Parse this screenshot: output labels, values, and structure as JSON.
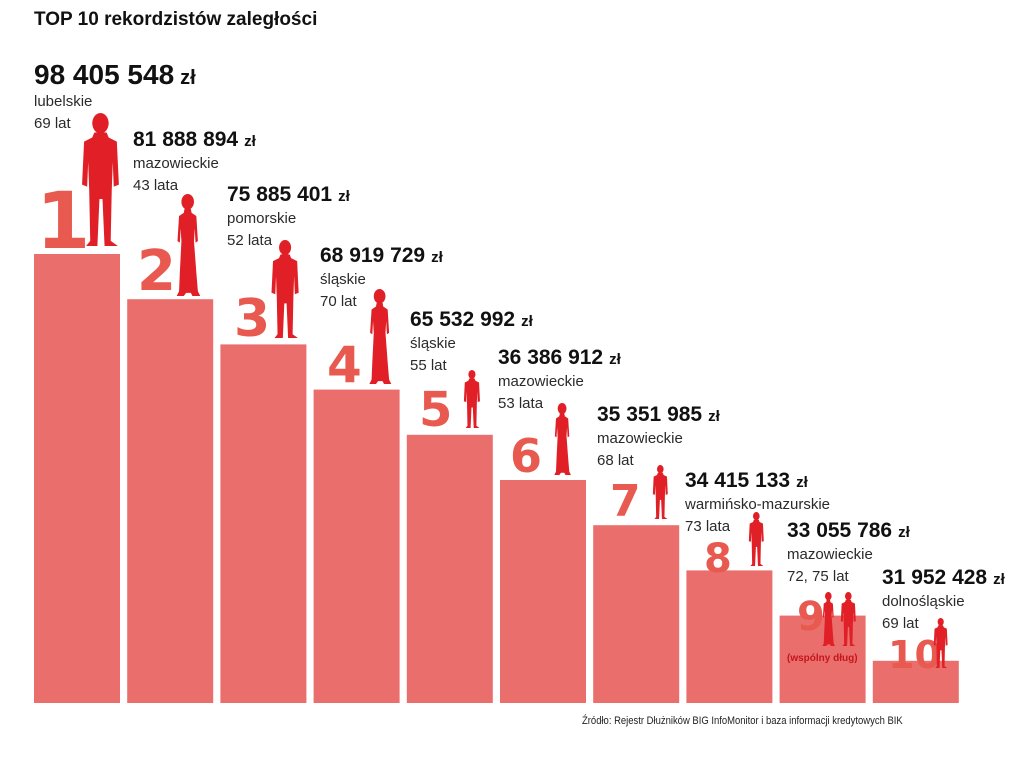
{
  "chart_data": {
    "type": "bar",
    "title": "TOP 10 rekordzistów zaległości",
    "xlabel": "",
    "ylabel": "",
    "categories": [
      "1",
      "2",
      "3",
      "4",
      "5",
      "6",
      "7",
      "8",
      "9",
      "10"
    ],
    "values": [
      98405548,
      81888894,
      75885401,
      68919729,
      65532992,
      36386912,
      35351985,
      34415133,
      33055786,
      31952428
    ],
    "unit": "zł",
    "items": [
      {
        "rank": "1",
        "amount": "98 405 548",
        "currency": "zł",
        "region": "lubelskie",
        "age": "69 lat",
        "figures": [
          "man"
        ]
      },
      {
        "rank": "2",
        "amount": "81 888 894",
        "currency": "zł",
        "region": "mazowieckie",
        "age": "43 lata",
        "figures": [
          "woman"
        ]
      },
      {
        "rank": "3",
        "amount": "75 885 401",
        "currency": "zł",
        "region": "pomorskie",
        "age": "52 lata",
        "figures": [
          "man"
        ]
      },
      {
        "rank": "4",
        "amount": "68 919 729",
        "currency": "zł",
        "region": "śląskie",
        "age": "70 lat",
        "figures": [
          "woman"
        ]
      },
      {
        "rank": "5",
        "amount": "65 532 992",
        "currency": "zł",
        "region": "śląskie",
        "age": "55 lat",
        "figures": [
          "man"
        ]
      },
      {
        "rank": "6",
        "amount": "36 386 912",
        "currency": "zł",
        "region": "mazowieckie",
        "age": "53 lata",
        "figures": [
          "woman"
        ]
      },
      {
        "rank": "7",
        "amount": "35 351 985",
        "currency": "zł",
        "region": "mazowieckie",
        "age": "68 lat",
        "figures": [
          "man"
        ]
      },
      {
        "rank": "8",
        "amount": "34 415 133",
        "currency": "zł",
        "region": "warmińsko-mazurskie",
        "age": "73 lata",
        "figures": [
          "man"
        ]
      },
      {
        "rank": "9",
        "amount": "33 055 786",
        "currency": "zł",
        "region": "mazowieckie",
        "age": "72, 75 lat",
        "figures": [
          "woman",
          "man"
        ],
        "note": "(wspólny dług)"
      },
      {
        "rank": "10",
        "amount": "31 952 428",
        "currency": "zł",
        "region": "dolnośląskie",
        "age": "69 lat",
        "figures": [
          "man"
        ]
      }
    ],
    "colors": {
      "bar": "#ea6e6b",
      "rank": "#e8594f",
      "figure": "#e01f26",
      "text": "#111111"
    },
    "grid": false,
    "legend": "none"
  },
  "source": "Źródło: Rejestr Dłużników BIG InfoMonitor i baza informacji kredytowych BIK"
}
